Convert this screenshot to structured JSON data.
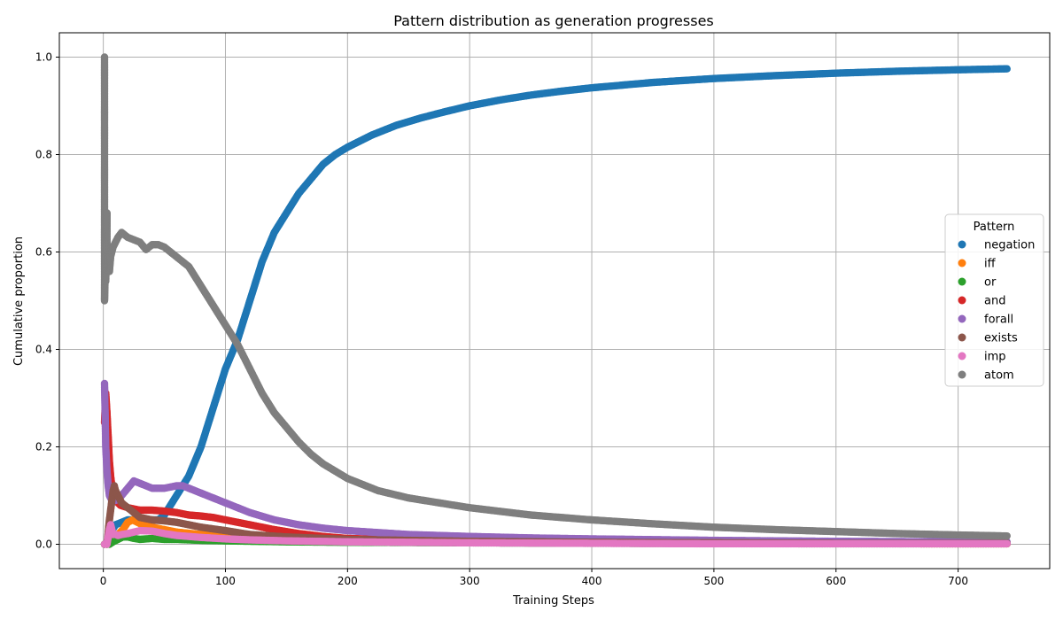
{
  "chart_data": {
    "type": "scatter",
    "title": "Pattern distribution as generation progresses",
    "xlabel": "Training Steps",
    "ylabel": "Cumulative proportion",
    "xlim": [
      -36,
      775
    ],
    "ylim": [
      -0.05,
      1.05
    ],
    "x_ticks": [
      0,
      100,
      200,
      300,
      400,
      500,
      600,
      700
    ],
    "y_ticks": [
      0.0,
      0.2,
      0.4,
      0.6,
      0.8,
      1.0
    ],
    "x_tick_labels": [
      "0",
      "100",
      "200",
      "300",
      "400",
      "500",
      "600",
      "700"
    ],
    "y_tick_labels": [
      "0.0",
      "0.2",
      "0.4",
      "0.6",
      "0.8",
      "1.0"
    ],
    "grid": true,
    "legend": {
      "title": "Pattern",
      "position": "center-right"
    },
    "series": [
      {
        "name": "negation",
        "color": "#1f77b4",
        "x": [
          1,
          3,
          5,
          10,
          20,
          30,
          40,
          45,
          50,
          55,
          60,
          65,
          70,
          75,
          80,
          85,
          90,
          95,
          100,
          110,
          120,
          130,
          140,
          150,
          160,
          170,
          180,
          190,
          200,
          220,
          240,
          260,
          280,
          300,
          325,
          350,
          375,
          400,
          450,
          500,
          550,
          600,
          650,
          700,
          740
        ],
        "y": [
          0.0,
          0.0,
          0.02,
          0.04,
          0.05,
          0.05,
          0.05,
          0.05,
          0.06,
          0.08,
          0.1,
          0.12,
          0.14,
          0.17,
          0.2,
          0.24,
          0.28,
          0.32,
          0.36,
          0.42,
          0.5,
          0.58,
          0.64,
          0.68,
          0.72,
          0.75,
          0.78,
          0.8,
          0.815,
          0.84,
          0.86,
          0.875,
          0.888,
          0.9,
          0.912,
          0.922,
          0.93,
          0.937,
          0.948,
          0.956,
          0.962,
          0.967,
          0.971,
          0.974,
          0.976
        ]
      },
      {
        "name": "iff",
        "color": "#ff7f0e",
        "x": [
          1,
          3,
          5,
          8,
          12,
          16,
          20,
          24,
          28,
          32,
          40,
          50,
          60,
          80,
          100,
          150,
          200,
          300,
          400,
          500,
          600,
          700,
          740
        ],
        "y": [
          0.0,
          0.0,
          0.005,
          0.01,
          0.02,
          0.03,
          0.045,
          0.05,
          0.045,
          0.04,
          0.035,
          0.03,
          0.025,
          0.02,
          0.015,
          0.01,
          0.007,
          0.004,
          0.003,
          0.002,
          0.0015,
          0.001,
          0.001
        ]
      },
      {
        "name": "or",
        "color": "#2ca02c",
        "x": [
          1,
          3,
          5,
          8,
          12,
          16,
          20,
          25,
          30,
          40,
          50,
          60,
          80,
          100,
          150,
          200,
          300,
          400,
          500,
          600,
          700,
          740
        ],
        "y": [
          0.0,
          0.0,
          0.0,
          0.005,
          0.01,
          0.015,
          0.015,
          0.012,
          0.01,
          0.012,
          0.01,
          0.01,
          0.008,
          0.007,
          0.005,
          0.004,
          0.003,
          0.002,
          0.0015,
          0.001,
          0.001,
          0.001
        ]
      },
      {
        "name": "and",
        "color": "#d62728",
        "x": [
          1,
          2,
          3,
          4,
          5,
          6,
          7,
          8,
          10,
          14,
          20,
          30,
          40,
          50,
          60,
          70,
          80,
          90,
          100,
          120,
          140,
          160,
          180,
          200,
          250,
          300,
          400,
          500,
          600,
          700,
          740
        ],
        "y": [
          0.25,
          0.31,
          0.27,
          0.22,
          0.17,
          0.14,
          0.12,
          0.1,
          0.09,
          0.08,
          0.075,
          0.07,
          0.07,
          0.068,
          0.065,
          0.06,
          0.058,
          0.055,
          0.05,
          0.04,
          0.03,
          0.022,
          0.016,
          0.012,
          0.008,
          0.005,
          0.003,
          0.002,
          0.0015,
          0.001,
          0.001
        ]
      },
      {
        "name": "forall",
        "color": "#9467bd",
        "x": [
          1,
          2,
          3,
          4,
          5,
          7,
          10,
          15,
          20,
          25,
          30,
          40,
          50,
          60,
          65,
          70,
          80,
          90,
          100,
          110,
          120,
          140,
          160,
          180,
          200,
          250,
          300,
          350,
          400,
          500,
          600,
          700,
          740
        ],
        "y": [
          0.33,
          0.2,
          0.15,
          0.12,
          0.1,
          0.09,
          0.09,
          0.1,
          0.115,
          0.13,
          0.125,
          0.115,
          0.115,
          0.12,
          0.12,
          0.115,
          0.105,
          0.095,
          0.085,
          0.075,
          0.065,
          0.05,
          0.04,
          0.033,
          0.028,
          0.02,
          0.016,
          0.013,
          0.011,
          0.008,
          0.006,
          0.005,
          0.005
        ]
      },
      {
        "name": "exists",
        "color": "#8c564b",
        "x": [
          1,
          3,
          5,
          6,
          7,
          8,
          9,
          10,
          12,
          15,
          20,
          25,
          30,
          40,
          50,
          60,
          80,
          100,
          120,
          150,
          200,
          300,
          400,
          500,
          600,
          700,
          740
        ],
        "y": [
          0.0,
          0.0,
          0.05,
          0.07,
          0.09,
          0.11,
          0.12,
          0.11,
          0.1,
          0.085,
          0.075,
          0.065,
          0.055,
          0.05,
          0.048,
          0.045,
          0.035,
          0.028,
          0.02,
          0.015,
          0.01,
          0.006,
          0.004,
          0.003,
          0.002,
          0.002,
          0.002
        ]
      },
      {
        "name": "imp",
        "color": "#e377c2",
        "x": [
          1,
          3,
          5,
          6,
          8,
          10,
          12,
          15,
          20,
          25,
          30,
          40,
          50,
          60,
          80,
          100,
          120,
          150,
          200,
          300,
          400,
          500,
          600,
          700,
          740
        ],
        "y": [
          0.0,
          0.0,
          0.03,
          0.04,
          0.02,
          0.02,
          0.018,
          0.02,
          0.022,
          0.025,
          0.028,
          0.027,
          0.022,
          0.018,
          0.014,
          0.011,
          0.009,
          0.007,
          0.005,
          0.003,
          0.002,
          0.001,
          0.001,
          0.001,
          0.001
        ]
      },
      {
        "name": "atom",
        "color": "#7f7f7f",
        "x": [
          1,
          1,
          1,
          1,
          1,
          2,
          2,
          3,
          3,
          4,
          5,
          6,
          7,
          8,
          10,
          12,
          15,
          20,
          25,
          30,
          35,
          40,
          45,
          50,
          55,
          60,
          65,
          70,
          75,
          80,
          85,
          90,
          95,
          100,
          110,
          120,
          130,
          140,
          150,
          160,
          170,
          180,
          190,
          200,
          225,
          250,
          275,
          300,
          350,
          400,
          450,
          500,
          550,
          600,
          650,
          700,
          740
        ],
        "y": [
          1.0,
          0.75,
          0.71,
          0.67,
          0.5,
          0.6,
          0.54,
          0.68,
          0.6,
          0.57,
          0.56,
          0.59,
          0.6,
          0.61,
          0.62,
          0.63,
          0.64,
          0.63,
          0.625,
          0.62,
          0.605,
          0.615,
          0.615,
          0.61,
          0.6,
          0.59,
          0.58,
          0.57,
          0.55,
          0.53,
          0.51,
          0.49,
          0.47,
          0.45,
          0.41,
          0.36,
          0.31,
          0.27,
          0.24,
          0.21,
          0.185,
          0.165,
          0.15,
          0.135,
          0.11,
          0.095,
          0.085,
          0.075,
          0.06,
          0.05,
          0.042,
          0.035,
          0.03,
          0.026,
          0.022,
          0.019,
          0.017
        ]
      }
    ]
  }
}
